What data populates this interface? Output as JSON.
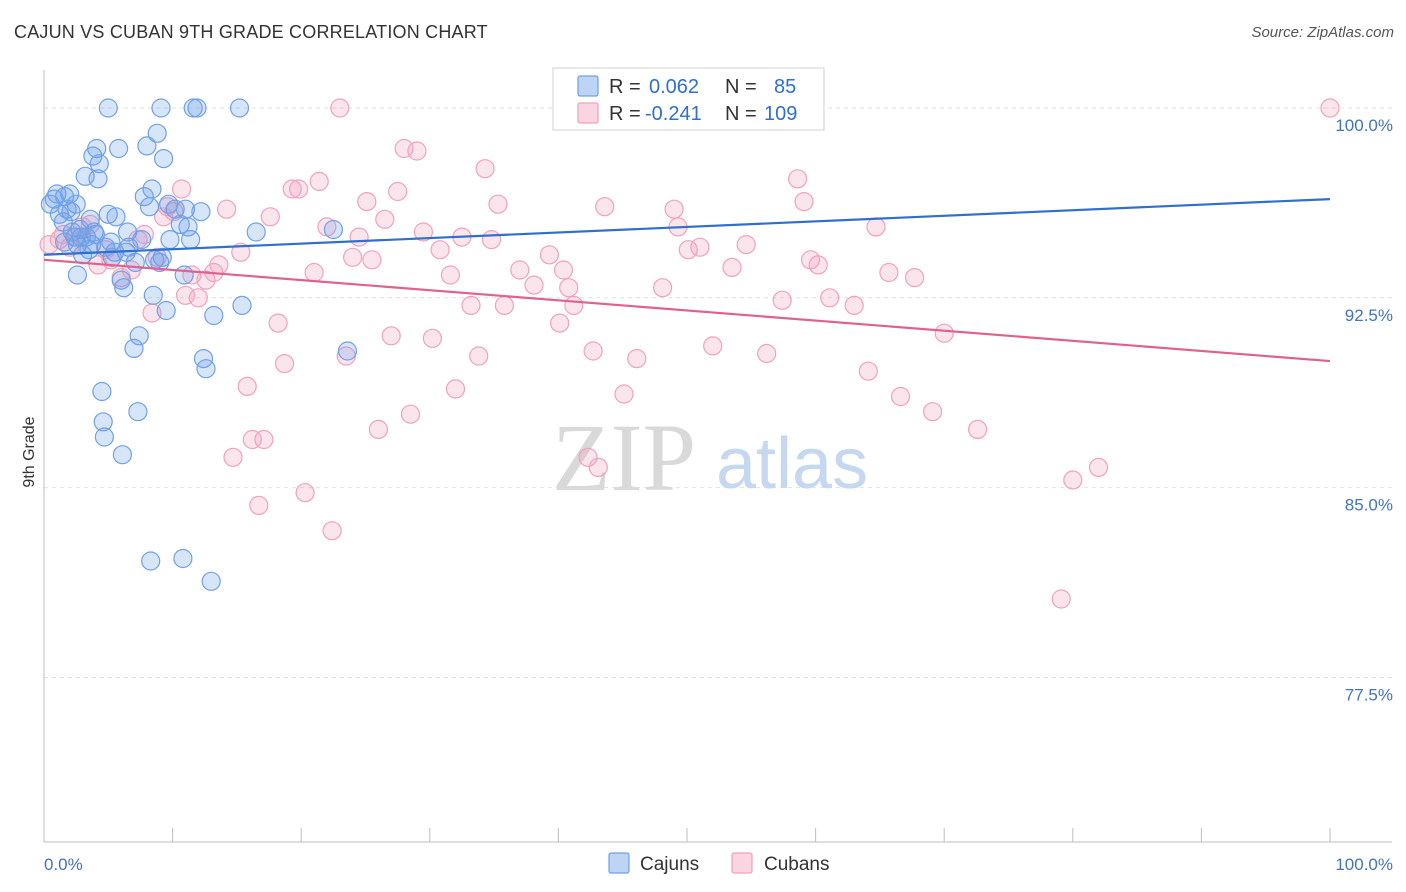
{
  "title": "CAJUN VS CUBAN 9TH GRADE CORRELATION CHART",
  "source": "Source: ZipAtlas.com",
  "watermark": {
    "zip": "ZIP",
    "atlas": "atlas"
  },
  "colors": {
    "cajuns": "#6fa0e8",
    "cajuns_line": "#2e6fcf",
    "cubans": "#f2a0bd",
    "cubans_line": "#e06090",
    "tick_text": "#4472c4",
    "grid": "#e0e0e0"
  },
  "legend": {
    "rows": [
      {
        "r_label": "R = ",
        "r_value": "0.062",
        "n_label": "N = ",
        "n_value": "85"
      },
      {
        "r_label": "R = ",
        "r_value": "-0.241",
        "n_label": "N = ",
        "n_value": "109"
      }
    ]
  },
  "chart_data": {
    "type": "scatter",
    "title": "CAJUN VS CUBAN 9TH GRADE CORRELATION CHART",
    "xlabel": "",
    "ylabel": "9th Grade",
    "xlim": [
      0,
      100
    ],
    "ylim": [
      71.0,
      101.5
    ],
    "x_tick_labels": [
      "0.0%",
      "100.0%"
    ],
    "y_ticks": [
      77.5,
      85.0,
      92.5,
      100.0
    ],
    "y_tick_labels": [
      "77.5%",
      "85.0%",
      "92.5%",
      "100.0%"
    ],
    "grid": "horizontal dashed",
    "legend_placement": "top-center and bottom",
    "series": [
      {
        "name": "Cajuns",
        "r": 0.062,
        "n": 85,
        "trend": {
          "x": [
            0,
            100
          ],
          "y": [
            94.2,
            96.4
          ]
        },
        "points": [
          [
            0.5,
            96.2
          ],
          [
            0.8,
            96.4
          ],
          [
            1.0,
            96.6
          ],
          [
            1.2,
            95.8
          ],
          [
            1.5,
            95.5
          ],
          [
            1.6,
            96.5
          ],
          [
            2.0,
            96.6
          ],
          [
            2.1,
            95.9
          ],
          [
            2.2,
            95.1
          ],
          [
            2.4,
            94.9
          ],
          [
            2.5,
            96.2
          ],
          [
            2.6,
            94.6
          ],
          [
            2.6,
            93.4
          ],
          [
            2.8,
            95.2
          ],
          [
            3.0,
            94.2
          ],
          [
            3.2,
            97.3
          ],
          [
            3.3,
            94.9
          ],
          [
            3.5,
            94.4
          ],
          [
            3.6,
            95.6
          ],
          [
            3.7,
            94.6
          ],
          [
            3.8,
            98.1
          ],
          [
            4.0,
            95.0
          ],
          [
            4.1,
            98.4
          ],
          [
            4.2,
            97.2
          ],
          [
            4.3,
            97.8
          ],
          [
            4.5,
            88.8
          ],
          [
            4.6,
            87.6
          ],
          [
            4.7,
            87.0
          ],
          [
            4.8,
            94.5
          ],
          [
            5.0,
            95.8
          ],
          [
            5.0,
            100.0
          ],
          [
            5.2,
            94.7
          ],
          [
            5.5,
            94.3
          ],
          [
            5.6,
            95.7
          ],
          [
            5.8,
            98.4
          ],
          [
            6.0,
            93.2
          ],
          [
            6.1,
            86.3
          ],
          [
            6.2,
            92.9
          ],
          [
            6.4,
            94.3
          ],
          [
            6.5,
            95.1
          ],
          [
            7.0,
            90.5
          ],
          [
            7.1,
            93.9
          ],
          [
            7.3,
            88.0
          ],
          [
            7.4,
            91.0
          ],
          [
            7.6,
            94.8
          ],
          [
            7.8,
            96.5
          ],
          [
            8.0,
            98.5
          ],
          [
            8.2,
            96.1
          ],
          [
            8.3,
            82.1
          ],
          [
            8.4,
            96.8
          ],
          [
            8.5,
            92.6
          ],
          [
            8.6,
            94.0
          ],
          [
            8.8,
            99.0
          ],
          [
            9.0,
            93.9
          ],
          [
            9.1,
            100.0
          ],
          [
            9.3,
            98.0
          ],
          [
            9.5,
            92.0
          ],
          [
            9.7,
            96.2
          ],
          [
            9.8,
            94.8
          ],
          [
            10.2,
            96.0
          ],
          [
            10.6,
            95.4
          ],
          [
            10.8,
            82.2
          ],
          [
            10.9,
            93.4
          ],
          [
            11.0,
            96.0
          ],
          [
            11.2,
            95.3
          ],
          [
            11.4,
            94.8
          ],
          [
            11.6,
            100.0
          ],
          [
            11.9,
            100.0
          ],
          [
            12.2,
            95.9
          ],
          [
            12.4,
            90.1
          ],
          [
            12.6,
            89.7
          ],
          [
            13.0,
            81.3
          ],
          [
            13.2,
            91.8
          ],
          [
            15.2,
            100.0
          ],
          [
            15.4,
            92.2
          ],
          [
            16.5,
            95.1
          ],
          [
            22.5,
            95.2
          ],
          [
            23.6,
            90.4
          ],
          [
            1.6,
            94.7
          ],
          [
            3.9,
            95.1
          ],
          [
            5.3,
            94.1
          ],
          [
            6.6,
            94.5
          ],
          [
            9.2,
            94.1
          ],
          [
            2.9,
            94.9
          ],
          [
            1.8,
            96.0
          ]
        ]
      },
      {
        "name": "Cubans",
        "r": -0.241,
        "n": 109,
        "trend": {
          "x": [
            0,
            100
          ],
          "y": [
            94.0,
            90.0
          ]
        },
        "points": [
          [
            0.4,
            94.6
          ],
          [
            1.2,
            94.8
          ],
          [
            1.5,
            95.0
          ],
          [
            2.0,
            94.5
          ],
          [
            2.5,
            94.9
          ],
          [
            3.0,
            95.3
          ],
          [
            3.6,
            95.4
          ],
          [
            4.2,
            93.8
          ],
          [
            4.8,
            94.4
          ],
          [
            5.2,
            94.0
          ],
          [
            6.0,
            93.3
          ],
          [
            6.8,
            93.6
          ],
          [
            7.3,
            94.8
          ],
          [
            7.8,
            95.0
          ],
          [
            8.4,
            91.9
          ],
          [
            8.8,
            94.1
          ],
          [
            9.3,
            95.7
          ],
          [
            9.6,
            96.1
          ],
          [
            10.1,
            95.9
          ],
          [
            10.7,
            96.8
          ],
          [
            11.0,
            92.6
          ],
          [
            11.5,
            93.4
          ],
          [
            12.0,
            92.5
          ],
          [
            12.6,
            93.2
          ],
          [
            13.2,
            93.5
          ],
          [
            13.6,
            93.8
          ],
          [
            14.2,
            96.0
          ],
          [
            14.7,
            86.2
          ],
          [
            15.3,
            94.3
          ],
          [
            15.8,
            89.0
          ],
          [
            16.2,
            86.9
          ],
          [
            16.7,
            84.3
          ],
          [
            17.1,
            86.9
          ],
          [
            17.6,
            95.7
          ],
          [
            18.2,
            91.5
          ],
          [
            18.7,
            89.9
          ],
          [
            19.3,
            96.8
          ],
          [
            19.8,
            96.8
          ],
          [
            20.3,
            84.8
          ],
          [
            21.0,
            93.5
          ],
          [
            21.4,
            97.1
          ],
          [
            22.0,
            95.3
          ],
          [
            22.4,
            83.3
          ],
          [
            23.0,
            100.0
          ],
          [
            23.5,
            90.2
          ],
          [
            24.0,
            94.1
          ],
          [
            24.5,
            94.9
          ],
          [
            25.1,
            96.3
          ],
          [
            25.5,
            94.0
          ],
          [
            26.0,
            87.3
          ],
          [
            26.5,
            95.6
          ],
          [
            27.0,
            91.0
          ],
          [
            27.5,
            96.7
          ],
          [
            28.0,
            98.4
          ],
          [
            28.5,
            87.9
          ],
          [
            29.0,
            98.3
          ],
          [
            29.5,
            95.1
          ],
          [
            30.2,
            90.9
          ],
          [
            30.8,
            94.4
          ],
          [
            31.6,
            93.4
          ],
          [
            32.0,
            88.9
          ],
          [
            32.5,
            94.9
          ],
          [
            33.2,
            92.2
          ],
          [
            33.8,
            90.2
          ],
          [
            34.3,
            97.6
          ],
          [
            34.8,
            94.8
          ],
          [
            35.3,
            96.2
          ],
          [
            35.8,
            92.2
          ],
          [
            37.0,
            93.6
          ],
          [
            38.1,
            93.0
          ],
          [
            39.3,
            94.2
          ],
          [
            40.1,
            91.5
          ],
          [
            40.4,
            93.6
          ],
          [
            40.8,
            92.9
          ],
          [
            41.2,
            92.2
          ],
          [
            42.3,
            86.2
          ],
          [
            42.7,
            90.4
          ],
          [
            43.1,
            85.8
          ],
          [
            43.6,
            96.1
          ],
          [
            45.1,
            88.7
          ],
          [
            46.1,
            90.1
          ],
          [
            48.1,
            92.9
          ],
          [
            49.0,
            96.0
          ],
          [
            49.3,
            95.3
          ],
          [
            50.1,
            94.4
          ],
          [
            51.0,
            94.5
          ],
          [
            52.0,
            90.6
          ],
          [
            53.5,
            93.7
          ],
          [
            54.6,
            94.6
          ],
          [
            56.2,
            90.3
          ],
          [
            57.4,
            92.4
          ],
          [
            58.6,
            97.2
          ],
          [
            59.1,
            96.3
          ],
          [
            59.6,
            94.0
          ],
          [
            60.2,
            93.8
          ],
          [
            61.1,
            92.5
          ],
          [
            63.0,
            92.2
          ],
          [
            64.1,
            89.6
          ],
          [
            64.7,
            95.3
          ],
          [
            65.7,
            93.5
          ],
          [
            66.6,
            88.6
          ],
          [
            67.7,
            93.3
          ],
          [
            69.1,
            88.0
          ],
          [
            70.0,
            91.1
          ],
          [
            72.6,
            87.3
          ],
          [
            79.1,
            80.6
          ],
          [
            80.0,
            85.3
          ],
          [
            82.0,
            85.8
          ],
          [
            100.0,
            100.0
          ]
        ]
      }
    ]
  },
  "bottom_legend": [
    {
      "label": "Cajuns"
    },
    {
      "label": "Cubans"
    }
  ]
}
